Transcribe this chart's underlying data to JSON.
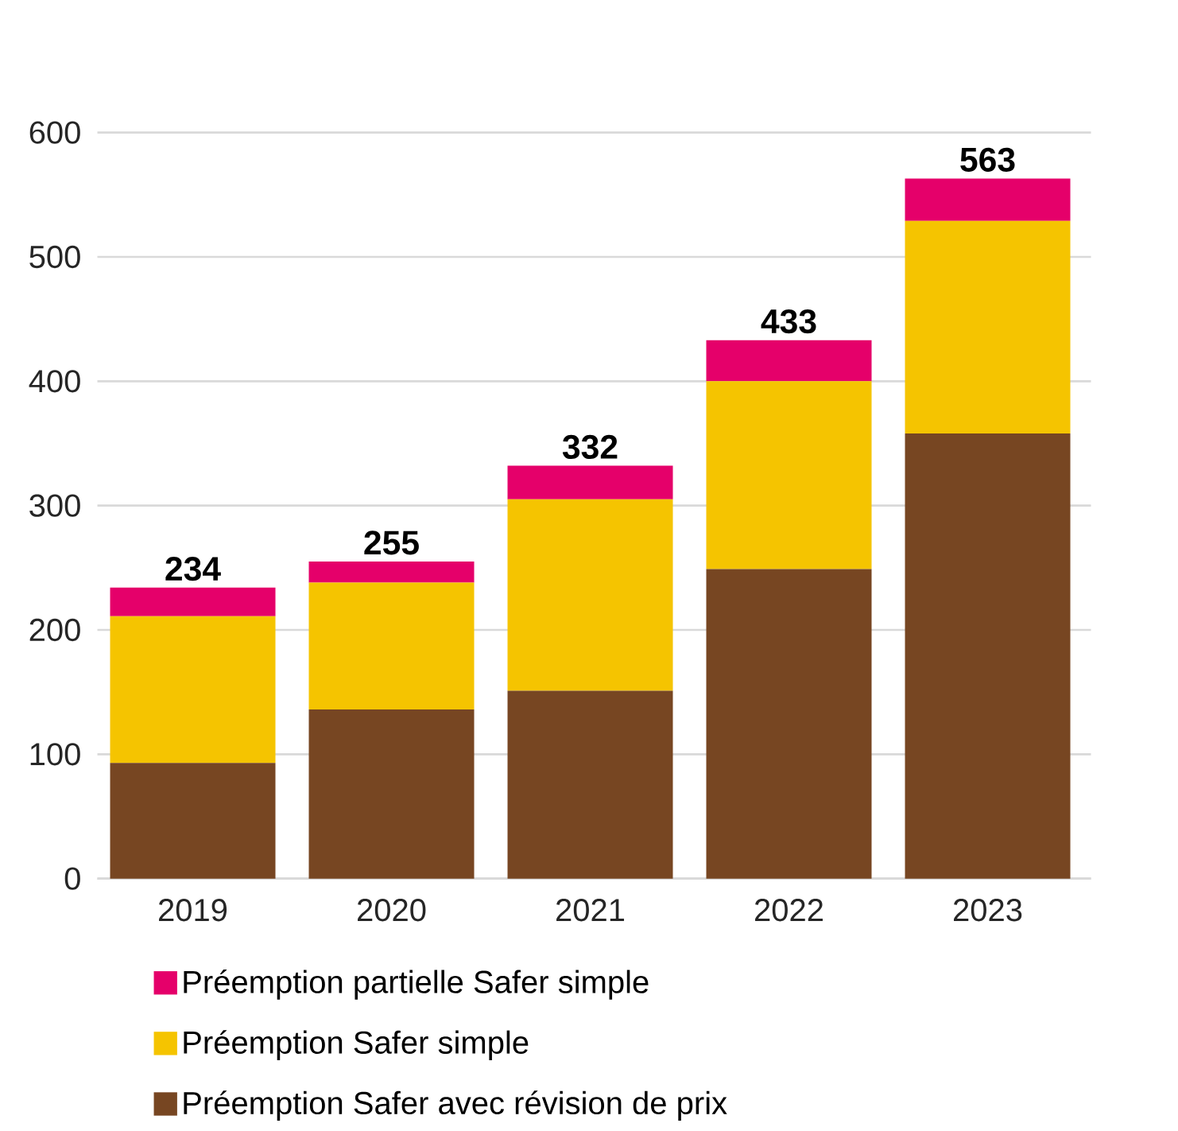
{
  "chart_data": {
    "type": "bar",
    "stacked": true,
    "categories": [
      "2019",
      "2020",
      "2021",
      "2022",
      "2023"
    ],
    "series": [
      {
        "name": "Préemption Safer avec révision de prix",
        "color": "#774622",
        "values": [
          93,
          136,
          151,
          249,
          358
        ]
      },
      {
        "name": "Préemption Safer simple",
        "color": "#f5c400",
        "values": [
          118,
          102,
          154,
          151,
          171
        ]
      },
      {
        "name": "Préemption partielle Safer simple",
        "color": "#e5006a",
        "values": [
          23,
          17,
          27,
          33,
          34
        ]
      }
    ],
    "totals": [
      "234",
      "255",
      "332",
      "433",
      "563"
    ],
    "ylim": [
      0,
      600
    ],
    "yticks": [
      0,
      100,
      200,
      300,
      400,
      500,
      600
    ],
    "grid": "y",
    "legend": "bottom"
  }
}
